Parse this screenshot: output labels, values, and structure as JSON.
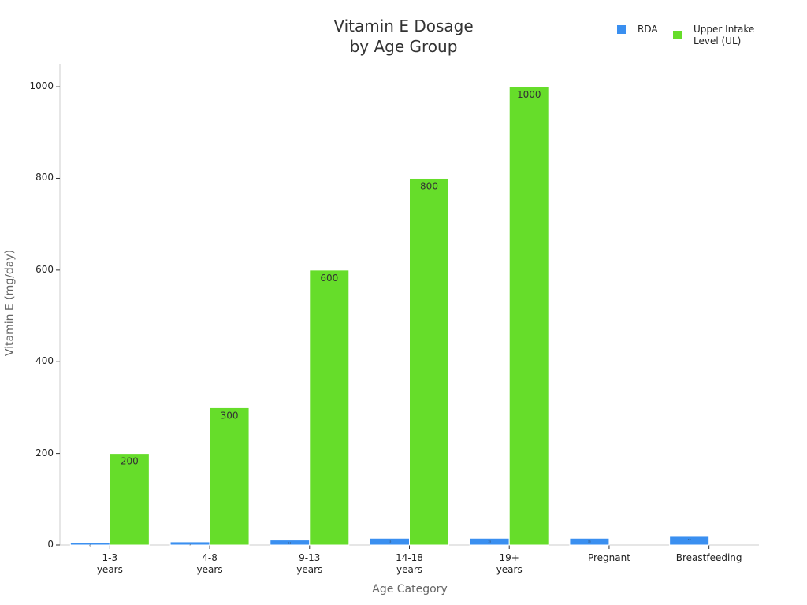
{
  "chart_data": {
    "type": "bar",
    "title": "Vitamin E Dosage\nby Age Group",
    "x_label": "Age Category",
    "y_label": "Vitamin E (mg/day)",
    "categories": [
      "1-3\nyears",
      "4-8\nyears",
      "9-13\nyears",
      "14-18\nyears",
      "19+\nyears",
      "Pregnant",
      "Breastfeeding"
    ],
    "series": [
      {
        "name": "RDA",
        "color": "#3a8ff0",
        "values": [
          6,
          7,
          11,
          15,
          15,
          15,
          19
        ]
      },
      {
        "name": "Upper Intake\nLevel (UL)",
        "color": "#66dd2a",
        "values": [
          200,
          300,
          600,
          800,
          1000,
          null,
          null
        ]
      }
    ],
    "ylim": [
      0,
      1050
    ],
    "yticks": [
      0,
      200,
      400,
      600,
      800,
      1000
    ],
    "grid": false,
    "legend": "top-right"
  }
}
